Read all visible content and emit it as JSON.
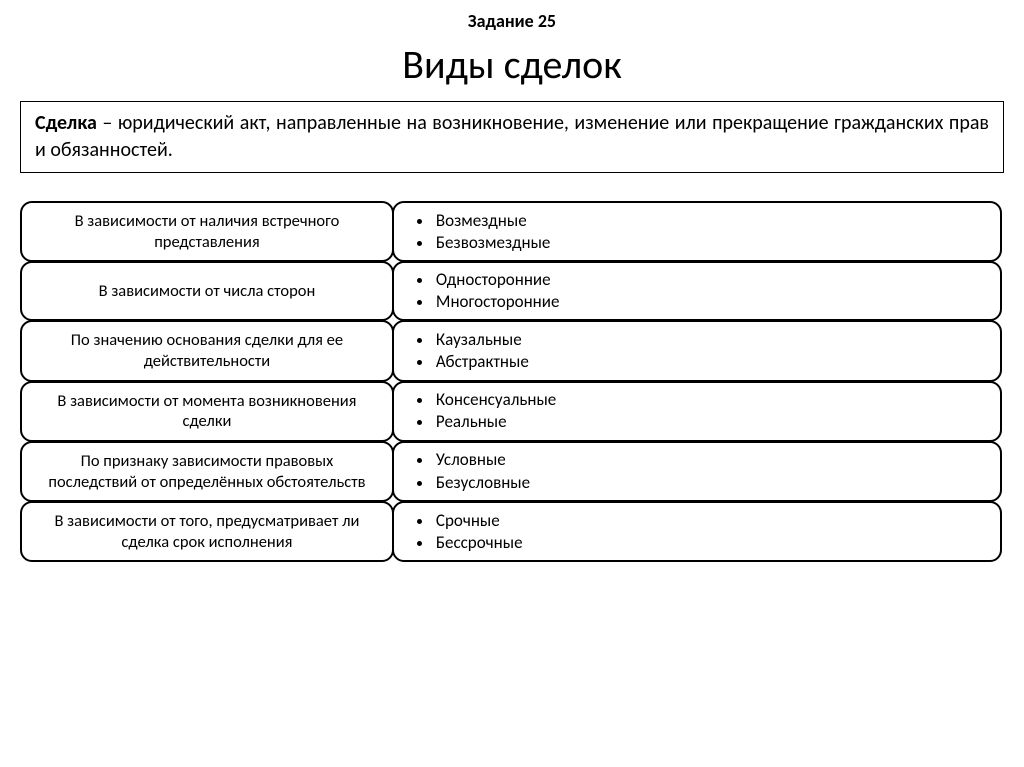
{
  "task_number": "Задание 25",
  "title": "Виды сделок",
  "definition": {
    "term": "Сделка",
    "text": " – юридический акт, направленные на возникновение, изменение или прекращение гражданских прав и обязанностей."
  },
  "categories": [
    {
      "criterion": "В зависимости от наличия встречного представления",
      "types": [
        "Возмездные",
        "Безвозмездные"
      ]
    },
    {
      "criterion": "В зависимости от числа сторон",
      "types": [
        "Односторонние",
        "Многосторонние"
      ]
    },
    {
      "criterion": "По значению основания сделки для ее действительности",
      "types": [
        "Каузальные",
        "Абстрактные"
      ]
    },
    {
      "criterion": "В зависимости от момента возникновения сделки",
      "types": [
        "Консенсуальные",
        "Реальные"
      ]
    },
    {
      "criterion": "По признаку зависимости правовых последствий от определённых обстоятельств",
      "types": [
        "Условные",
        "Безусловные"
      ]
    },
    {
      "criterion": "В зависимости от того, предусматривает ли сделка срок исполнения",
      "types": [
        "Срочные",
        "Бессрочные"
      ]
    }
  ],
  "styling": {
    "background_color": "#ffffff",
    "border_color": "#000000",
    "border_width": 2,
    "border_radius": 12,
    "title_fontsize": 40,
    "task_fontsize": 18,
    "definition_fontsize": 20,
    "cell_fontsize": 17,
    "left_column_width_pct": 38,
    "right_column_width_pct": 62,
    "font_family": "Calibri"
  }
}
